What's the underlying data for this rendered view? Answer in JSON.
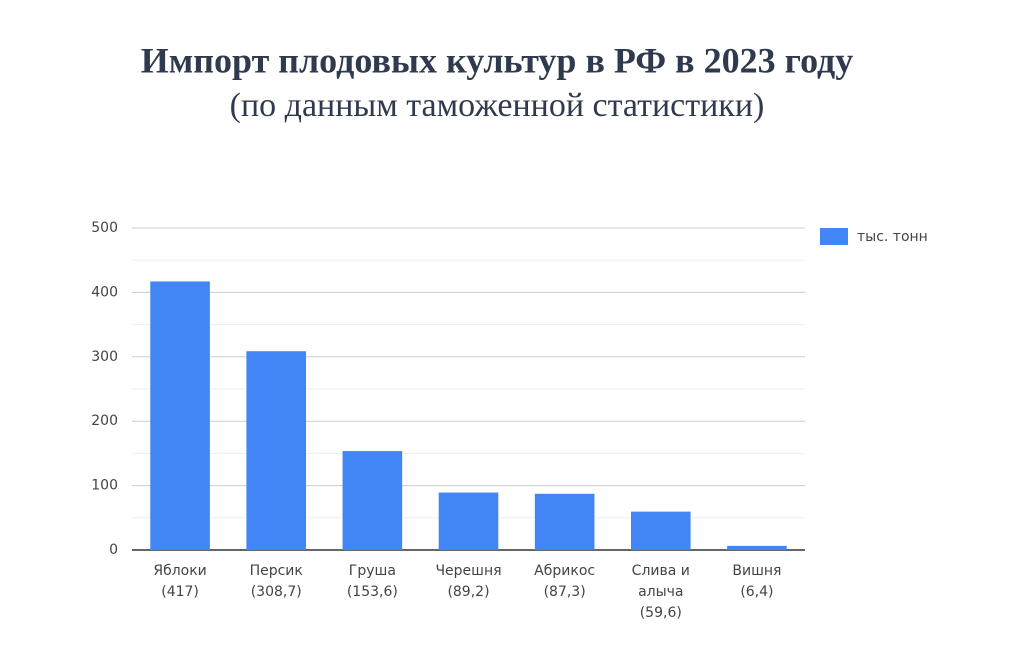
{
  "chart_data": {
    "type": "bar",
    "title": "Импорт плодовых культур в РФ в 2023 году",
    "subtitle": "(по данным таможенной статистики)",
    "categories": [
      [
        "Яблоки",
        "(417)"
      ],
      [
        "Персик",
        "(308,7)"
      ],
      [
        "Груша",
        "(153,6)"
      ],
      [
        "Черешня",
        "(89,2)"
      ],
      [
        "Абрикос",
        "(87,3)"
      ],
      [
        "Слива и",
        "алыча",
        "(59,6)"
      ],
      [
        "Вишня",
        "(6,4)"
      ]
    ],
    "series": [
      {
        "name": "тыс. тонн",
        "color": "#4285f4",
        "values": [
          417,
          308.7,
          153.6,
          89.2,
          87.3,
          59.6,
          6.4
        ]
      }
    ],
    "ylim": [
      0,
      500
    ],
    "yticks": [
      0,
      100,
      200,
      300,
      400,
      500
    ],
    "grid": true,
    "legend": "right"
  }
}
